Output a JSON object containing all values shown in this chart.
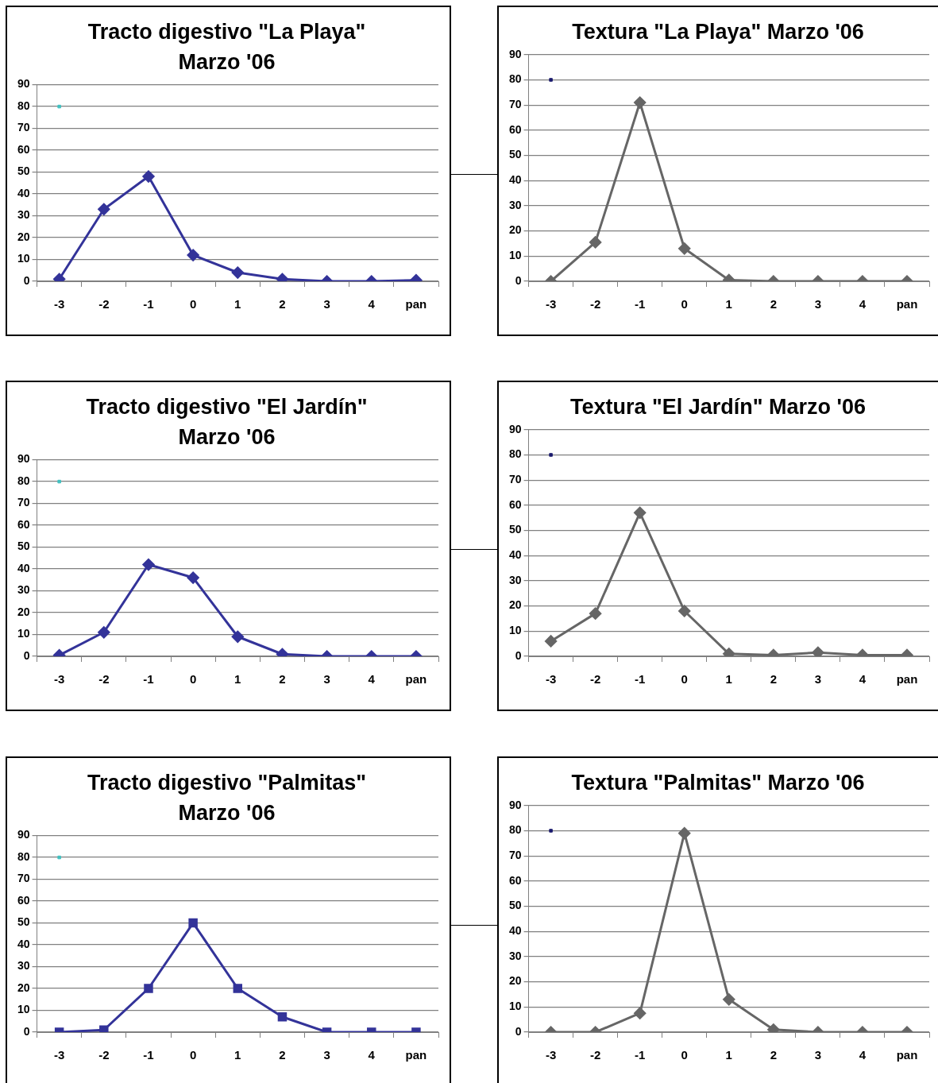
{
  "chart_data": [
    {
      "type": "line",
      "title": "Tracto digestivo \"La Playa\" Marzo '06",
      "categories": [
        "-3",
        "-2",
        "-1",
        "0",
        "1",
        "2",
        "3",
        "4",
        "pan"
      ],
      "marker": "diamond",
      "ylim": [
        0,
        90
      ],
      "yticks": [
        0,
        10,
        20,
        30,
        40,
        50,
        60,
        70,
        80,
        90
      ],
      "grid": "y",
      "series": [
        {
          "color": "#333399",
          "values": [
            1,
            33,
            48,
            12,
            4,
            1,
            0,
            0,
            0.5
          ]
        },
        {
          "type": "scatter",
          "marker": "square",
          "color": "#40c0c0",
          "x": [
            "-3"
          ],
          "values": [
            80
          ]
        }
      ]
    },
    {
      "type": "line",
      "title": "Textura \"La Playa\" Marzo '06",
      "categories": [
        "-3",
        "-2",
        "-1",
        "0",
        "1",
        "2",
        "3",
        "4",
        "pan"
      ],
      "marker": "diamond",
      "ylim": [
        0,
        90
      ],
      "yticks": [
        0,
        10,
        20,
        30,
        40,
        50,
        60,
        70,
        80,
        90
      ],
      "grid": "y",
      "series": [
        {
          "color": "#666666",
          "values": [
            0,
            15.5,
            71,
            13,
            0.5,
            0,
            0,
            0,
            0
          ]
        },
        {
          "type": "scatter",
          "marker": "square",
          "color": "#1a1a6e",
          "x": [
            "-3"
          ],
          "values": [
            80
          ]
        }
      ]
    },
    {
      "type": "line",
      "title": "Tracto digestivo \"El Jardín\" Marzo '06",
      "categories": [
        "-3",
        "-2",
        "-1",
        "0",
        "1",
        "2",
        "3",
        "4",
        "pan"
      ],
      "marker": "diamond",
      "ylim": [
        0,
        90
      ],
      "yticks": [
        0,
        10,
        20,
        30,
        40,
        50,
        60,
        70,
        80,
        90
      ],
      "grid": "y",
      "series": [
        {
          "color": "#333399",
          "values": [
            0.5,
            11,
            42,
            36,
            9,
            1,
            0,
            0,
            0
          ]
        },
        {
          "type": "scatter",
          "marker": "square",
          "color": "#40c0c0",
          "x": [
            "-3"
          ],
          "values": [
            80
          ]
        }
      ]
    },
    {
      "type": "line",
      "title": "Textura \"El Jardín\" Marzo '06",
      "categories": [
        "-3",
        "-2",
        "-1",
        "0",
        "1",
        "2",
        "3",
        "4",
        "pan"
      ],
      "marker": "diamond",
      "ylim": [
        0,
        90
      ],
      "yticks": [
        0,
        10,
        20,
        30,
        40,
        50,
        60,
        70,
        80,
        90
      ],
      "grid": "y",
      "series": [
        {
          "color": "#666666",
          "values": [
            6,
            17,
            57,
            18,
            1,
            0.5,
            1.5,
            0.5,
            0.5
          ]
        },
        {
          "type": "scatter",
          "marker": "square",
          "color": "#1a1a6e",
          "x": [
            "-3"
          ],
          "values": [
            80
          ]
        }
      ]
    },
    {
      "type": "line",
      "title": "Tracto digestivo \"Palmitas\" Marzo '06",
      "categories": [
        "-3",
        "-2",
        "-1",
        "0",
        "1",
        "2",
        "3",
        "4",
        "pan"
      ],
      "marker": "square",
      "ylim": [
        0,
        90
      ],
      "yticks": [
        0,
        10,
        20,
        30,
        40,
        50,
        60,
        70,
        80,
        90
      ],
      "grid": "y",
      "series": [
        {
          "color": "#333399",
          "values": [
            0,
            1,
            20,
            50,
            20,
            7,
            0,
            0,
            0
          ]
        },
        {
          "type": "scatter",
          "marker": "square",
          "color": "#40c0c0",
          "x": [
            "-3"
          ],
          "values": [
            80
          ]
        }
      ]
    },
    {
      "type": "line",
      "title": "Textura \"Palmitas\" Marzo '06",
      "categories": [
        "-3",
        "-2",
        "-1",
        "0",
        "1",
        "2",
        "3",
        "4",
        "pan"
      ],
      "marker": "diamond",
      "ylim": [
        0,
        90
      ],
      "yticks": [
        0,
        10,
        20,
        30,
        40,
        50,
        60,
        70,
        80,
        90
      ],
      "grid": "y",
      "series": [
        {
          "color": "#666666",
          "values": [
            0,
            0,
            7.5,
            79,
            13,
            1,
            0,
            0,
            0
          ]
        },
        {
          "type": "scatter",
          "marker": "square",
          "color": "#1a1a6e",
          "x": [
            "-3"
          ],
          "values": [
            80
          ]
        }
      ]
    }
  ]
}
